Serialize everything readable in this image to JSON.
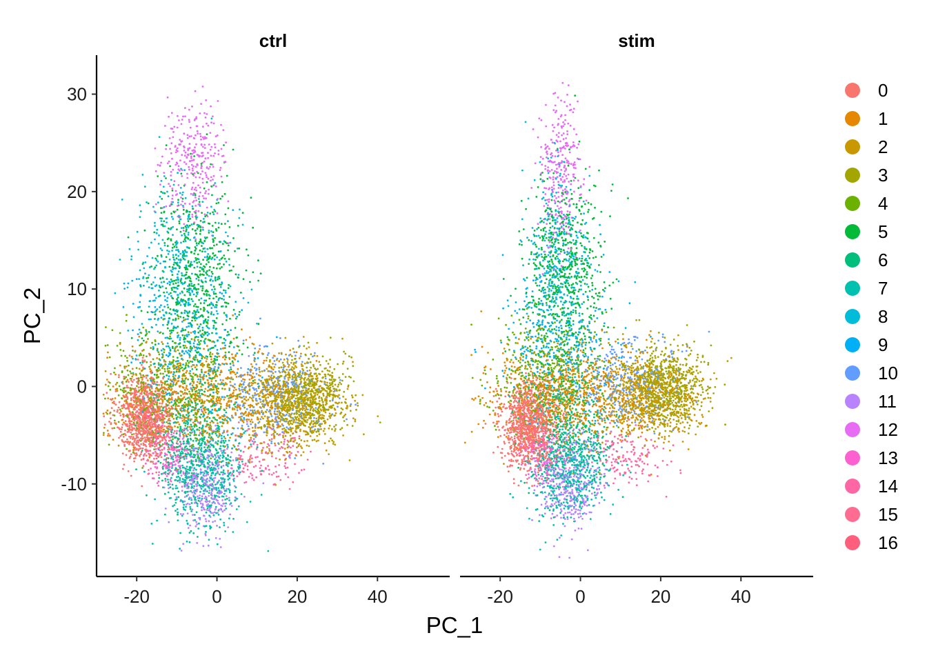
{
  "chart_data": {
    "type": "scatter",
    "xlabel": "PC_1",
    "ylabel": "PC_2",
    "xlim": [
      -30,
      58
    ],
    "ylim": [
      -19.5,
      34
    ],
    "x_ticks": [
      -20,
      0,
      20,
      40
    ],
    "y_ticks": [
      30,
      20,
      10,
      0,
      -10
    ],
    "grid": false,
    "legend_placement": "right",
    "panels": [
      {
        "title": "ctrl",
        "clusters": [
          {
            "cluster": "0",
            "center": [
              -18,
              -3
            ],
            "spread": [
              3.5,
              2.2
            ],
            "weight": 90
          },
          {
            "cluster": "1",
            "center": [
              -4,
              -1
            ],
            "spread": [
              12,
              2.5
            ],
            "weight": 80
          },
          {
            "cluster": "2",
            "center": [
              18,
              -2
            ],
            "spread": [
              7,
              2.5
            ],
            "weight": 70
          },
          {
            "cluster": "3",
            "center": [
              22,
              -1
            ],
            "spread": [
              5,
              2
            ],
            "weight": 65
          },
          {
            "cluster": "4",
            "center": [
              -12,
              0
            ],
            "spread": [
              8,
              3
            ],
            "weight": 55
          },
          {
            "cluster": "5",
            "center": [
              -5,
              11
            ],
            "spread": [
              6,
              5
            ],
            "weight": 65
          },
          {
            "cluster": "6",
            "center": [
              -6,
              -6
            ],
            "spread": [
              5,
              3
            ],
            "weight": 40
          },
          {
            "cluster": "7",
            "center": [
              -3,
              -9
            ],
            "spread": [
              5,
              3
            ],
            "weight": 45
          },
          {
            "cluster": "8",
            "center": [
              -9,
              12
            ],
            "spread": [
              6,
              5
            ],
            "weight": 40
          },
          {
            "cluster": "9",
            "center": [
              -8,
              4
            ],
            "spread": [
              8,
              4
            ],
            "weight": 30
          },
          {
            "cluster": "10",
            "center": [
              14,
              -1
            ],
            "spread": [
              7,
              2.5
            ],
            "weight": 35
          },
          {
            "cluster": "11",
            "center": [
              -3,
              -10
            ],
            "spread": [
              4,
              2.5
            ],
            "weight": 35
          },
          {
            "cluster": "12",
            "center": [
              -6,
              23
            ],
            "spread": [
              4,
              3
            ],
            "weight": 30
          },
          {
            "cluster": "13",
            "center": [
              -12,
              -7
            ],
            "spread": [
              3,
              1.5
            ],
            "weight": 15
          },
          {
            "cluster": "14",
            "center": [
              12,
              -7
            ],
            "spread": [
              5,
              1.5
            ],
            "weight": 15
          },
          {
            "cluster": "15",
            "center": [
              -15,
              -5
            ],
            "spread": [
              3,
              2
            ],
            "weight": 8
          },
          {
            "cluster": "16",
            "center": [
              -17,
              -4
            ],
            "spread": [
              2,
              1.5
            ],
            "weight": 6
          }
        ]
      },
      {
        "title": "stim",
        "clusters": [
          {
            "cluster": "0",
            "center": [
              -13,
              -4
            ],
            "spread": [
              3.5,
              2.2
            ],
            "weight": 90
          },
          {
            "cluster": "1",
            "center": [
              -2,
              -1
            ],
            "spread": [
              11,
              2.5
            ],
            "weight": 80
          },
          {
            "cluster": "2",
            "center": [
              18,
              -1
            ],
            "spread": [
              6,
              2
            ],
            "weight": 70
          },
          {
            "cluster": "3",
            "center": [
              21,
              0
            ],
            "spread": [
              5,
              2
            ],
            "weight": 65
          },
          {
            "cluster": "4",
            "center": [
              -8,
              1
            ],
            "spread": [
              7,
              3
            ],
            "weight": 55
          },
          {
            "cluster": "5",
            "center": [
              -4,
              11
            ],
            "spread": [
              5,
              5
            ],
            "weight": 65
          },
          {
            "cluster": "6",
            "center": [
              -3,
              -5
            ],
            "spread": [
              5,
              3
            ],
            "weight": 40
          },
          {
            "cluster": "7",
            "center": [
              -3,
              -9
            ],
            "spread": [
              5,
              2.5
            ],
            "weight": 45
          },
          {
            "cluster": "8",
            "center": [
              -6,
              12
            ],
            "spread": [
              4,
              5
            ],
            "weight": 40
          },
          {
            "cluster": "9",
            "center": [
              -6,
              4
            ],
            "spread": [
              7,
              4
            ],
            "weight": 30
          },
          {
            "cluster": "10",
            "center": [
              12,
              0
            ],
            "spread": [
              7,
              2.5
            ],
            "weight": 35
          },
          {
            "cluster": "11",
            "center": [
              -3,
              -10
            ],
            "spread": [
              4,
              2.5
            ],
            "weight": 35
          },
          {
            "cluster": "12",
            "center": [
              -5,
              22
            ],
            "spread": [
              2.5,
              4
            ],
            "weight": 30
          },
          {
            "cluster": "13",
            "center": [
              -9,
              -7
            ],
            "spread": [
              3,
              1.5
            ],
            "weight": 15
          },
          {
            "cluster": "14",
            "center": [
              12,
              -7
            ],
            "spread": [
              5,
              1.5
            ],
            "weight": 15
          },
          {
            "cluster": "15",
            "center": [
              -11,
              -5
            ],
            "spread": [
              3,
              2
            ],
            "weight": 8
          },
          {
            "cluster": "16",
            "center": [
              -13,
              -4
            ],
            "spread": [
              2,
              1.5
            ],
            "weight": 6
          }
        ]
      }
    ],
    "legend": [
      {
        "label": "0",
        "color": "#F8766D"
      },
      {
        "label": "1",
        "color": "#E58700"
      },
      {
        "label": "2",
        "color": "#C99800"
      },
      {
        "label": "3",
        "color": "#A3A500"
      },
      {
        "label": "4",
        "color": "#6BB100"
      },
      {
        "label": "5",
        "color": "#00BA38"
      },
      {
        "label": "6",
        "color": "#00BF7D"
      },
      {
        "label": "7",
        "color": "#00C0AF"
      },
      {
        "label": "8",
        "color": "#00BCD8"
      },
      {
        "label": "9",
        "color": "#00B0F6"
      },
      {
        "label": "10",
        "color": "#619CFF"
      },
      {
        "label": "11",
        "color": "#B983FF"
      },
      {
        "label": "12",
        "color": "#E76BF3"
      },
      {
        "label": "13",
        "color": "#FD61D1"
      },
      {
        "label": "14",
        "color": "#FF67A4"
      },
      {
        "label": "15",
        "color": "#FF6C91"
      },
      {
        "label": "16",
        "color": "#FF5E7D"
      }
    ]
  }
}
